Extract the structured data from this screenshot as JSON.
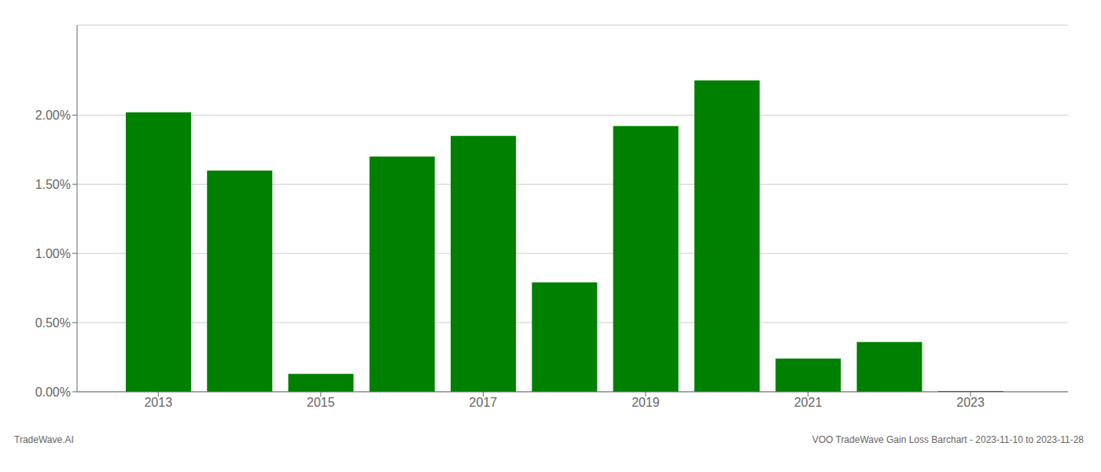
{
  "chart_data": {
    "type": "bar",
    "x": [
      2013,
      2014,
      2015,
      2016,
      2017,
      2018,
      2019,
      2020,
      2021,
      2022,
      2023
    ],
    "values": [
      0.0202,
      0.016,
      0.0013,
      0.017,
      0.0185,
      0.0079,
      0.0192,
      0.0225,
      0.0024,
      0.0036,
      5e-05
    ],
    "color": "#008000",
    "xlim": [
      2012,
      2024.2
    ],
    "xticks": [
      2013,
      2015,
      2017,
      2019,
      2021,
      2023
    ],
    "ylim": [
      0,
      0.0265
    ],
    "yticks": [
      {
        "value": 0.0,
        "label": "0.00%"
      },
      {
        "value": 0.005,
        "label": "0.50%"
      },
      {
        "value": 0.01,
        "label": "1.00%"
      },
      {
        "value": 0.015,
        "label": "1.50%"
      },
      {
        "value": 0.02,
        "label": "2.00%"
      }
    ],
    "grid": true,
    "annotations": [
      "TradeWave.AI",
      "VOO TradeWave Gain Loss Barchart - 2023-11-10 to 2023-11-28"
    ]
  }
}
